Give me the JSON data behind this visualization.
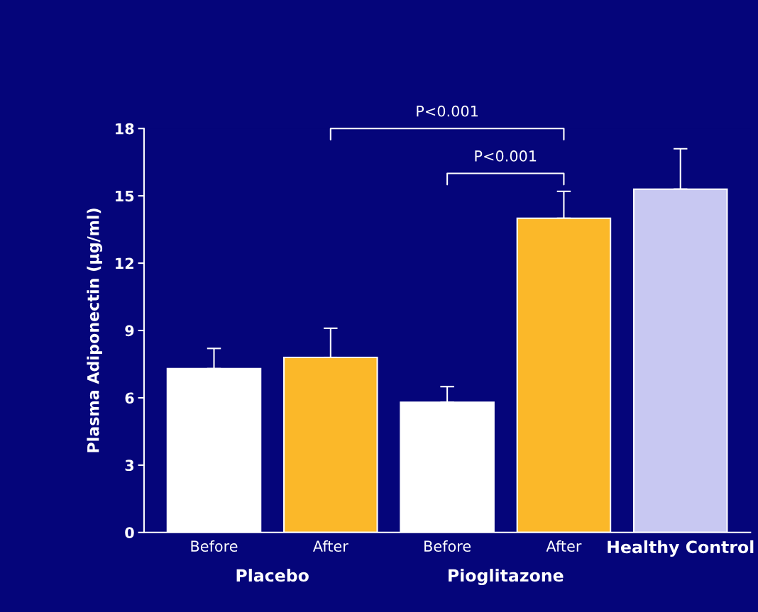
{
  "chart_data": {
    "type": "bar",
    "ylabel": "Plasma Adiponectin (μg/ml)",
    "categories": [
      "Before",
      "After",
      "Before",
      "After",
      "Healthy Control"
    ],
    "values": [
      7.3,
      7.8,
      5.8,
      14.0,
      15.3
    ],
    "colors": [
      "#ffffff",
      "#fbb829",
      "#ffffff",
      "#fbb829",
      "#c8c8f2"
    ],
    "errors": [
      [
        7.3,
        8.2
      ],
      [
        7.8,
        9.1
      ],
      [
        5.8,
        6.5
      ],
      [
        14.0,
        15.2
      ],
      [
        15.3,
        17.1
      ]
    ],
    "ylim": [
      0,
      18
    ],
    "yticks": [
      0,
      3,
      6,
      9,
      12,
      15,
      18
    ],
    "grid": false,
    "legend": false,
    "annotations": [
      "P<0.001",
      "P<0.001",
      "Placebo",
      "Pioglitazone"
    ]
  }
}
